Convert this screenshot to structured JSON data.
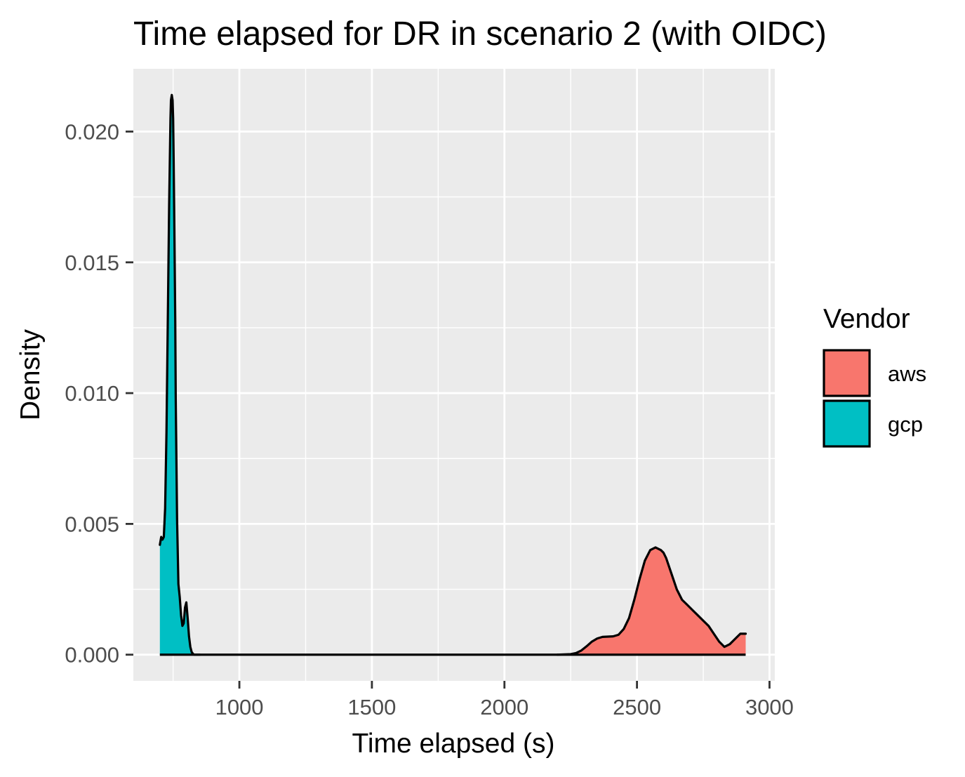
{
  "chart_data": {
    "type": "area",
    "subtype": "density",
    "title": "Time elapsed for DR in scenario 2 (with OIDC)",
    "xlabel": "Time elapsed (s)",
    "ylabel": "Density",
    "xlim": [
      600,
      3020
    ],
    "ylim": [
      -0.001,
      0.0224
    ],
    "x_ticks": [
      1000,
      1500,
      2000,
      2500,
      3000
    ],
    "x_tick_labels": [
      "1000",
      "1500",
      "2000",
      "2500",
      "3000"
    ],
    "x_minor_ticks": [
      750,
      1250,
      1750,
      2250,
      2750
    ],
    "y_ticks": [
      0.0,
      0.005,
      0.01,
      0.015,
      0.02
    ],
    "y_tick_labels": [
      "0.000",
      "0.005",
      "0.010",
      "0.015",
      "0.020"
    ],
    "y_minor_ticks": [
      0.0025,
      0.0075,
      0.0125,
      0.0175
    ],
    "grid": true,
    "panel_background": "#ebebeb",
    "grid_color": "#ffffff",
    "legend": {
      "title": "Vendor",
      "position": "right"
    },
    "series": [
      {
        "name": "aws",
        "color": "#f8766d",
        "x": [
          2200,
          2250,
          2270,
          2290,
          2310,
          2330,
          2350,
          2370,
          2390,
          2410,
          2430,
          2450,
          2470,
          2490,
          2510,
          2530,
          2550,
          2570,
          2590,
          2600,
          2610,
          2630,
          2650,
          2670,
          2690,
          2710,
          2730,
          2750,
          2770,
          2790,
          2810,
          2830,
          2850,
          2870,
          2890,
          2910
        ],
        "y": [
          0.0,
          2e-05,
          6e-05,
          0.00016,
          0.00032,
          0.0005,
          0.00062,
          0.00068,
          0.00069,
          0.0007,
          0.00076,
          0.00098,
          0.0014,
          0.0021,
          0.0029,
          0.0036,
          0.004,
          0.0041,
          0.004,
          0.0039,
          0.0037,
          0.0031,
          0.0025,
          0.0021,
          0.0019,
          0.0017,
          0.0015,
          0.0013,
          0.0011,
          0.0008,
          0.0005,
          0.0003,
          0.0004,
          0.0006,
          0.0008,
          0.0008
        ]
      },
      {
        "name": "gcp",
        "color": "#00bfc4",
        "x": [
          700,
          705,
          710,
          715,
          720,
          725,
          730,
          735,
          740,
          742,
          745,
          748,
          750,
          752,
          755,
          758,
          760,
          765,
          770,
          775,
          780,
          785,
          790,
          795,
          800,
          805,
          810,
          815,
          820,
          825,
          830,
          835,
          840,
          850
        ],
        "y": [
          0.0042,
          0.0045,
          0.0044,
          0.0045,
          0.0056,
          0.0085,
          0.0128,
          0.0172,
          0.0205,
          0.0212,
          0.0214,
          0.0212,
          0.0205,
          0.019,
          0.0162,
          0.0128,
          0.0098,
          0.0052,
          0.0027,
          0.0022,
          0.0015,
          0.0011,
          0.0012,
          0.0018,
          0.002,
          0.0014,
          0.0007,
          0.0003,
          0.0001,
          3e-05,
          0.0,
          0.0,
          0.0,
          0.0
        ]
      }
    ]
  }
}
